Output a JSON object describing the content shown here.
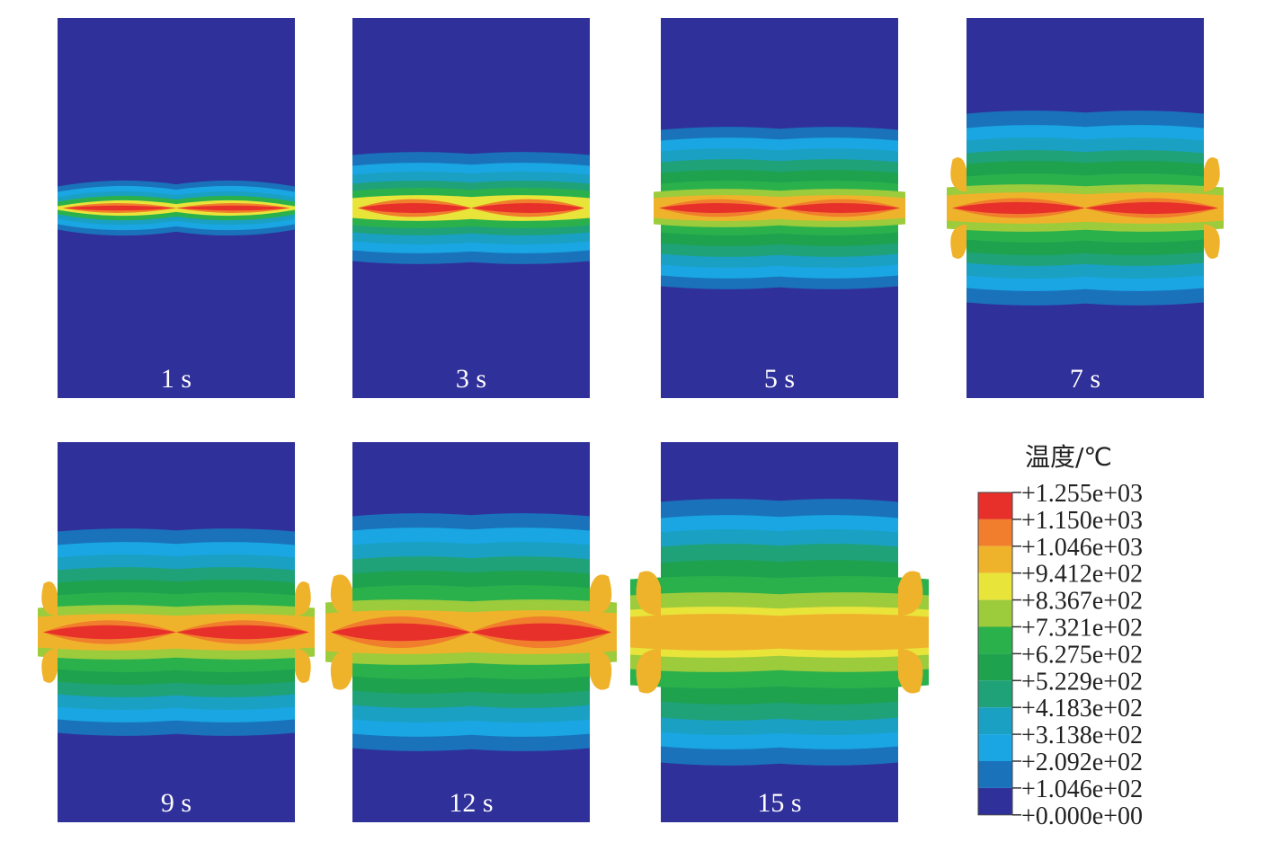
{
  "figure": {
    "panels": [
      {
        "label": "1 s",
        "t": 1
      },
      {
        "label": "3 s",
        "t": 3
      },
      {
        "label": "5 s",
        "t": 5
      },
      {
        "label": "7 s",
        "t": 7
      },
      {
        "label": "9 s",
        "t": 9
      },
      {
        "label": "12 s",
        "t": 12
      },
      {
        "label": "15 s",
        "t": 15
      }
    ],
    "legend": {
      "title": "温度/℃",
      "values": [
        "+1.255e+03",
        "+1.150e+03",
        "+1.046e+03",
        "+9.412e+02",
        "+8.367e+02",
        "+7.321e+02",
        "+6.275e+02",
        "+5.229e+02",
        "+4.183e+02",
        "+3.138e+02",
        "+2.092e+02",
        "+1.046e+02",
        "+0.000e+00"
      ],
      "colors": [
        "#e8302a",
        "#f07e2c",
        "#efb32b",
        "#e9e43a",
        "#9ccb3c",
        "#2bb14c",
        "#1ea24e",
        "#1fa278",
        "#1aa0c2",
        "#19a6e2",
        "#1a72bb",
        "#30309a"
      ]
    }
  }
}
